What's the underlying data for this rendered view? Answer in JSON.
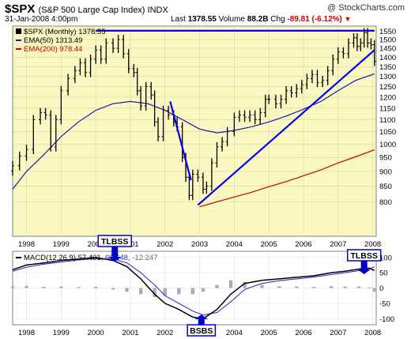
{
  "header": {
    "symbol": "$SPX",
    "name": "(S&P 500 Large Cap Index) INDX",
    "date": "31-Jan-2008 4:00pm",
    "last_label": "Last",
    "last_value": "1378.55",
    "volume_label": "Volume",
    "volume_value": "88.2B",
    "chg_label": "Chg",
    "chg_value": "-89.81 (-6.12%)",
    "chg_arrow": "▼",
    "logo": "@ StockCharts.com"
  },
  "legend": {
    "price": "$SPX (Monthly) 1378.55",
    "ema50": "EMA(50) 1313.49",
    "ema200": "EMA(200) 978.44"
  },
  "macd_legend": {
    "label": "MACD(12,26,9)",
    "macd": "57.401,",
    "signal": "69.648,",
    "hist": "-12.247"
  },
  "annotations": {
    "tlbss_1": "TLBSS",
    "tlbss_2": "TLBSS",
    "bsbs": "BSBS"
  },
  "colors": {
    "price_bg": "#fbf7c0",
    "grid": "#d8d4a8",
    "price_bars": "#000000",
    "ema50": "#1a1aa8",
    "ema200": "#cc0000",
    "trendline": "#0000ee",
    "macd_line": "#000000",
    "signal_line": "#3333cc",
    "histogram": "#a8a8c0",
    "annotation_box": "#0000cc"
  },
  "chart_data": [
    {
      "type": "ohlc",
      "title": "$SPX (Monthly)",
      "x_tick_labels": [
        "1998",
        "1999",
        "2000",
        "2001",
        "2002",
        "2003",
        "2004",
        "2005",
        "2006",
        "2007",
        "2008"
      ],
      "x_ticks": [
        1998,
        1999,
        2000,
        2001,
        2002,
        2003,
        2004,
        2005,
        2006,
        2007,
        2008
      ],
      "xlim": [
        1997.6,
        2008.1
      ],
      "ylim": [
        700,
        1580
      ],
      "y_ticks": [
        800,
        850,
        900,
        950,
        1000,
        1050,
        1100,
        1150,
        1200,
        1250,
        1300,
        1350,
        1400,
        1450,
        1500,
        1550
      ],
      "y_scale": "log",
      "grid": true,
      "close_series": {
        "name": "$SPX",
        "points": [
          [
            1997.6,
            920
          ],
          [
            1997.8,
            955
          ],
          [
            1998.0,
            980
          ],
          [
            1998.2,
            1100
          ],
          [
            1998.4,
            1130
          ],
          [
            1998.55,
            1120
          ],
          [
            1998.7,
            990
          ],
          [
            1998.85,
            1100
          ],
          [
            1999.0,
            1230
          ],
          [
            1999.2,
            1290
          ],
          [
            1999.4,
            1330
          ],
          [
            1999.55,
            1370
          ],
          [
            1999.7,
            1320
          ],
          [
            1999.85,
            1390
          ],
          [
            2000.0,
            1440
          ],
          [
            2000.15,
            1390
          ],
          [
            2000.3,
            1480
          ],
          [
            2000.5,
            1450
          ],
          [
            2000.65,
            1500
          ],
          [
            2000.8,
            1420
          ],
          [
            2000.95,
            1340
          ],
          [
            2001.1,
            1320
          ],
          [
            2001.2,
            1230
          ],
          [
            2001.3,
            1160
          ],
          [
            2001.45,
            1250
          ],
          [
            2001.6,
            1210
          ],
          [
            2001.7,
            1090
          ],
          [
            2001.8,
            1030
          ],
          [
            2001.95,
            1140
          ],
          [
            2002.1,
            1120
          ],
          [
            2002.25,
            1090
          ],
          [
            2002.35,
            1070
          ],
          [
            2002.5,
            950
          ],
          [
            2002.6,
            880
          ],
          [
            2002.7,
            820
          ],
          [
            2002.8,
            890
          ],
          [
            2002.95,
            880
          ],
          [
            2003.1,
            840
          ],
          [
            2003.2,
            850
          ],
          [
            2003.35,
            930
          ],
          [
            2003.5,
            990
          ],
          [
            2003.65,
            1010
          ],
          [
            2003.8,
            1050
          ],
          [
            2004.0,
            1110
          ],
          [
            2004.15,
            1120
          ],
          [
            2004.3,
            1110
          ],
          [
            2004.45,
            1120
          ],
          [
            2004.6,
            1100
          ],
          [
            2004.75,
            1130
          ],
          [
            2004.9,
            1190
          ],
          [
            2005.0,
            1190
          ],
          [
            2005.2,
            1170
          ],
          [
            2005.35,
            1190
          ],
          [
            2005.5,
            1230
          ],
          [
            2005.65,
            1220
          ],
          [
            2005.8,
            1240
          ],
          [
            2005.95,
            1260
          ],
          [
            2006.1,
            1290
          ],
          [
            2006.25,
            1310
          ],
          [
            2006.4,
            1270
          ],
          [
            2006.55,
            1280
          ],
          [
            2006.7,
            1330
          ],
          [
            2006.85,
            1390
          ],
          [
            2007.0,
            1430
          ],
          [
            2007.15,
            1420
          ],
          [
            2007.3,
            1480
          ],
          [
            2007.45,
            1510
          ],
          [
            2007.55,
            1460
          ],
          [
            2007.65,
            1480
          ],
          [
            2007.75,
            1540
          ],
          [
            2007.85,
            1480
          ],
          [
            2007.95,
            1470
          ],
          [
            2008.05,
            1378.55
          ]
        ]
      },
      "ema50_series": {
        "name": "EMA(50)",
        "points": [
          [
            1997.6,
            840
          ],
          [
            1998.0,
            900
          ],
          [
            1998.5,
            960
          ],
          [
            1999.0,
            1030
          ],
          [
            1999.5,
            1090
          ],
          [
            2000.0,
            1140
          ],
          [
            2000.5,
            1170
          ],
          [
            2001.0,
            1180
          ],
          [
            2001.5,
            1170
          ],
          [
            2002.0,
            1140
          ],
          [
            2002.5,
            1100
          ],
          [
            2003.0,
            1060
          ],
          [
            2003.5,
            1045
          ],
          [
            2004.0,
            1055
          ],
          [
            2004.5,
            1070
          ],
          [
            2005.0,
            1090
          ],
          [
            2005.5,
            1115
          ],
          [
            2006.0,
            1145
          ],
          [
            2006.5,
            1180
          ],
          [
            2007.0,
            1230
          ],
          [
            2007.5,
            1280
          ],
          [
            2008.05,
            1313.49
          ]
        ]
      },
      "ema200_series": {
        "name": "EMA(200)",
        "points": [
          [
            2003.0,
            785
          ],
          [
            2003.5,
            800
          ],
          [
            2004.0,
            815
          ],
          [
            2004.5,
            830
          ],
          [
            2005.0,
            848
          ],
          [
            2005.5,
            865
          ],
          [
            2006.0,
            885
          ],
          [
            2006.5,
            905
          ],
          [
            2007.0,
            930
          ],
          [
            2007.5,
            952
          ],
          [
            2008.05,
            978.44
          ]
        ]
      },
      "trendlines": [
        {
          "from": [
            2000.0,
            1552
          ],
          "to": [
            2008.05,
            1552
          ]
        },
        {
          "from": [
            2002.15,
            1180
          ],
          "to": [
            2002.75,
            870
          ]
        },
        {
          "from": [
            2002.95,
            790
          ],
          "to": [
            2008.05,
            1440
          ]
        }
      ]
    },
    {
      "type": "line",
      "title": "MACD(12,26,9)",
      "x_tick_labels": [
        "1998",
        "1999",
        "2000",
        "2001",
        "2002",
        "2003",
        "2004",
        "2005",
        "2006",
        "2007",
        "2008"
      ],
      "x_ticks": [
        1998,
        1999,
        2000,
        2001,
        2002,
        2003,
        2004,
        2005,
        2006,
        2007,
        2008
      ],
      "xlim": [
        1997.6,
        2008.1
      ],
      "ylim": [
        -120,
        120
      ],
      "y_ticks": [
        100,
        50,
        0,
        -50,
        -100
      ],
      "grid": true,
      "series": [
        {
          "name": "MACD",
          "points": [
            [
              1997.6,
              60
            ],
            [
              1998.0,
              75
            ],
            [
              1998.5,
              82
            ],
            [
              1999.0,
              90
            ],
            [
              1999.5,
              95
            ],
            [
              2000.0,
              100
            ],
            [
              2000.5,
              90
            ],
            [
              2000.9,
              70
            ],
            [
              2001.3,
              30
            ],
            [
              2001.7,
              -20
            ],
            [
              2002.0,
              -50
            ],
            [
              2002.4,
              -70
            ],
            [
              2002.8,
              -95
            ],
            [
              2003.1,
              -100
            ],
            [
              2003.5,
              -70
            ],
            [
              2003.9,
              -20
            ],
            [
              2004.3,
              15
            ],
            [
              2004.8,
              25
            ],
            [
              2005.3,
              30
            ],
            [
              2005.8,
              35
            ],
            [
              2006.3,
              40
            ],
            [
              2006.8,
              50
            ],
            [
              2007.2,
              55
            ],
            [
              2007.6,
              62
            ],
            [
              2007.9,
              65
            ],
            [
              2008.05,
              57.401
            ]
          ]
        },
        {
          "name": "Signal",
          "points": [
            [
              1997.6,
              55
            ],
            [
              1998.0,
              68
            ],
            [
              1998.5,
              78
            ],
            [
              1999.0,
              85
            ],
            [
              1999.5,
              92
            ],
            [
              2000.0,
              96
            ],
            [
              2000.5,
              95
            ],
            [
              2000.9,
              82
            ],
            [
              2001.3,
              50
            ],
            [
              2001.7,
              10
            ],
            [
              2002.0,
              -25
            ],
            [
              2002.4,
              -50
            ],
            [
              2002.8,
              -75
            ],
            [
              2003.1,
              -88
            ],
            [
              2003.5,
              -80
            ],
            [
              2003.9,
              -45
            ],
            [
              2004.3,
              -5
            ],
            [
              2004.8,
              15
            ],
            [
              2005.3,
              24
            ],
            [
              2005.8,
              30
            ],
            [
              2006.3,
              36
            ],
            [
              2006.8,
              44
            ],
            [
              2007.2,
              50
            ],
            [
              2007.6,
              57
            ],
            [
              2007.9,
              63
            ],
            [
              2008.05,
              69.648
            ]
          ]
        },
        {
          "name": "Histogram",
          "points": [
            [
              1997.6,
              5
            ],
            [
              1998.0,
              7
            ],
            [
              1998.5,
              4
            ],
            [
              1999.0,
              5
            ],
            [
              1999.5,
              3
            ],
            [
              2000.0,
              4
            ],
            [
              2000.5,
              -5
            ],
            [
              2000.9,
              -12
            ],
            [
              2001.3,
              -20
            ],
            [
              2001.7,
              -30
            ],
            [
              2002.0,
              -25
            ],
            [
              2002.4,
              -20
            ],
            [
              2002.8,
              -20
            ],
            [
              2003.1,
              -12
            ],
            [
              2003.5,
              10
            ],
            [
              2003.9,
              25
            ],
            [
              2004.3,
              20
            ],
            [
              2004.8,
              10
            ],
            [
              2005.3,
              6
            ],
            [
              2005.8,
              5
            ],
            [
              2006.3,
              4
            ],
            [
              2006.8,
              6
            ],
            [
              2007.2,
              5
            ],
            [
              2007.6,
              5
            ],
            [
              2007.9,
              2
            ],
            [
              2008.05,
              -12.247
            ]
          ]
        }
      ]
    }
  ]
}
